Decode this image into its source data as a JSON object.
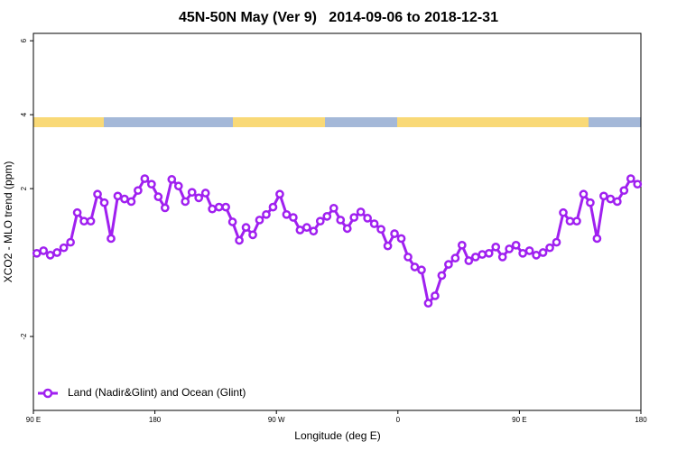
{
  "chart_data": {
    "type": "line",
    "title": "45N-50N May (Ver 9)   2014-09-06 to 2018-12-31",
    "x_label": "Longitude (deg E)",
    "y_label": "XCO2 - MLO trend (ppm)",
    "xlim": [
      90,
      540
    ],
    "xticks": [
      {
        "value": 90,
        "label": "90 E"
      },
      180,
      {
        "value": 270,
        "label": "90 W"
      },
      {
        "value": 360,
        "label": "0"
      },
      {
        "value": 450,
        "label": "90 E"
      },
      {
        "value": 540,
        "label": "180"
      }
    ],
    "ylim": [
      -4,
      6.2
    ],
    "yticks": [
      -2,
      2,
      4,
      6
    ],
    "legend": "bottom-left",
    "x": [
      92.5,
      97.5,
      102.5,
      107.5,
      112.5,
      117.5,
      122.5,
      127.5,
      132.5,
      137.5,
      142.5,
      147.5,
      152.5,
      157.5,
      162.5,
      167.5,
      172.5,
      177.5,
      182.5,
      187.5,
      192.5,
      197.5,
      202.5,
      207.5,
      212.5,
      217.5,
      222.5,
      227.5,
      232.5,
      237.5,
      242.5,
      247.5,
      252.5,
      257.5,
      262.5,
      267.5,
      272.5,
      277.5,
      282.5,
      287.5,
      292.5,
      297.5,
      302.5,
      307.5,
      312.5,
      317.5,
      322.5,
      327.5,
      332.5,
      337.5,
      342.5,
      347.5,
      352.5,
      357.5,
      362.5,
      367.5,
      372.5,
      377.5,
      382.5,
      387.5,
      392.5,
      397.5,
      402.5,
      407.5,
      412.5,
      417.5,
      422.5,
      427.5,
      432.5,
      437.5,
      442.5,
      447.5,
      452.5,
      457.5,
      462.5,
      467.5,
      472.5,
      477.5,
      482.5,
      487.5,
      492.5,
      497.5,
      502.5,
      507.5,
      512.5,
      517.5,
      522.5,
      527.5,
      532.5,
      537.5
    ],
    "series": [
      {
        "name": "Land (Nadir&Glint) and Ocean (Glint)",
        "color": "#a020f0",
        "values": [
          0.25,
          0.32,
          0.2,
          0.27,
          0.4,
          0.55,
          1.35,
          1.12,
          1.12,
          1.85,
          1.62,
          0.65,
          1.8,
          1.72,
          1.65,
          1.95,
          2.27,
          2.12,
          1.78,
          1.48,
          2.25,
          2.07,
          1.65,
          1.9,
          1.75,
          1.88,
          1.45,
          1.5,
          1.5,
          1.1,
          0.6,
          0.95,
          0.75,
          1.15,
          1.3,
          1.5,
          1.85,
          1.3,
          1.22,
          0.88,
          0.95,
          0.85,
          1.12,
          1.25,
          1.47,
          1.15,
          0.92,
          1.22,
          1.37,
          1.2,
          1.05,
          0.9,
          0.45,
          0.78,
          0.65,
          0.15,
          -0.12,
          -0.2,
          -1.1,
          -0.9,
          -0.35,
          -0.05,
          0.12,
          0.47,
          0.05,
          0.15,
          0.22,
          0.25,
          0.42,
          0.15,
          0.37,
          0.47,
          0.25,
          0.32,
          0.2,
          0.27,
          0.4,
          0.55,
          1.35,
          1.12,
          1.12,
          1.85,
          1.62,
          0.65,
          1.8,
          1.72,
          1.65,
          1.95,
          2.27,
          2.12
        ]
      }
    ]
  }
}
